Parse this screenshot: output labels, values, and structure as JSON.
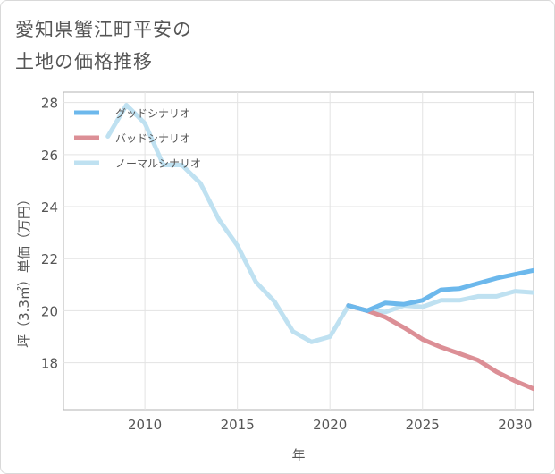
{
  "title_lines": [
    "愛知県蟹江町平安の",
    "土地の価格推移"
  ],
  "chart_data": {
    "type": "line",
    "title": "愛知県蟹江町平安の土地の価格推移",
    "xlabel": "年",
    "ylabel": "坪（3.3㎡）単価（万円）",
    "xlim": [
      2005.6,
      2031
    ],
    "ylim": [
      16.2,
      28.4
    ],
    "x_ticks": [
      2010,
      2015,
      2020,
      2025,
      2030
    ],
    "y_ticks": [
      18,
      20,
      22,
      24,
      26,
      28
    ],
    "grid": true,
    "legend_position": "top-left",
    "series": [
      {
        "name": "グッドシナリオ",
        "color": "#6cb8ec",
        "x": [
          2021,
          2022,
          2023,
          2024,
          2025,
          2026,
          2027,
          2028,
          2029,
          2030,
          2031
        ],
        "y": [
          20.2,
          20.0,
          20.3,
          20.25,
          20.4,
          20.8,
          20.85,
          21.05,
          21.25,
          21.4,
          21.55
        ]
      },
      {
        "name": "バッドシナリオ",
        "color": "#dc8f96",
        "x": [
          2021,
          2022,
          2023,
          2024,
          2025,
          2026,
          2027,
          2028,
          2029,
          2030,
          2031
        ],
        "y": [
          20.2,
          20.0,
          19.75,
          19.35,
          18.9,
          18.6,
          18.35,
          18.1,
          17.65,
          17.3,
          17.0
        ]
      },
      {
        "name": "ノーマルシナリオ",
        "color": "#bfe1f1",
        "x": [
          2008,
          2009,
          2010,
          2011,
          2012,
          2013,
          2014,
          2015,
          2016,
          2017,
          2018,
          2019,
          2020,
          2021,
          2022,
          2023,
          2024,
          2025,
          2026,
          2027,
          2028,
          2029,
          2030,
          2031
        ],
        "y": [
          26.7,
          27.9,
          27.2,
          25.6,
          25.6,
          24.9,
          23.5,
          22.5,
          21.1,
          20.35,
          19.2,
          18.8,
          19.0,
          20.2,
          20.0,
          19.95,
          20.2,
          20.15,
          20.4,
          20.4,
          20.55,
          20.55,
          20.75,
          20.7
        ]
      }
    ]
  }
}
